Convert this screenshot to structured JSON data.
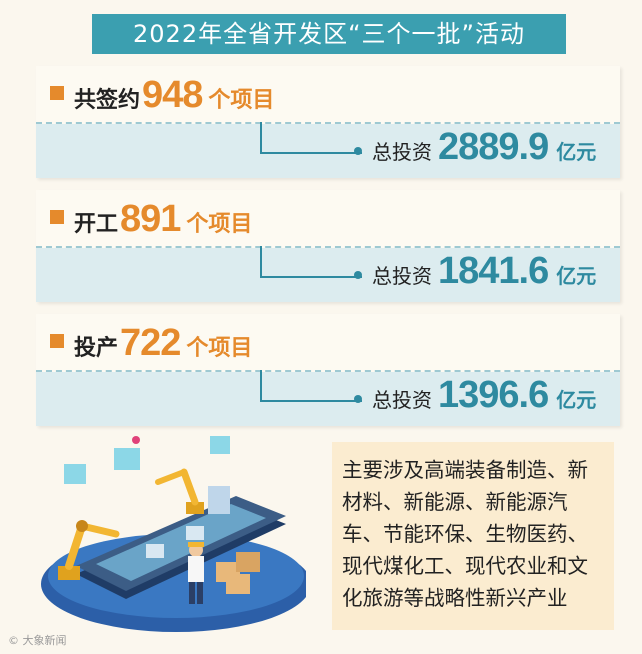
{
  "title": "2022年全省开发区“三个一批”活动",
  "cards": [
    {
      "label": "共签约",
      "count": "948",
      "unit": "个项目",
      "invest_label": "总投资",
      "invest": "2889.9",
      "invest_unit": "亿元"
    },
    {
      "label": "开工",
      "count": "891",
      "unit": "个项目",
      "invest_label": "总投资",
      "invest": "1841.6",
      "invest_unit": "亿元"
    },
    {
      "label": "投产",
      "count": "722",
      "unit": "个项目",
      "invest_label": "总投资",
      "invest": "1396.6",
      "invest_unit": "亿元"
    }
  ],
  "description": "主要涉及高端装备制造、新材料、新能源、新能源汽车、节能环保、生物医药、现代煤化工、现代农业和文化旅游等战略性新兴产业",
  "watermark": "© 大象新闻",
  "colors": {
    "title_bg": "#3b9fb0",
    "accent_orange": "#e58a2c",
    "accent_teal": "#2e8aa0",
    "note_bg": "#fbecd0"
  }
}
